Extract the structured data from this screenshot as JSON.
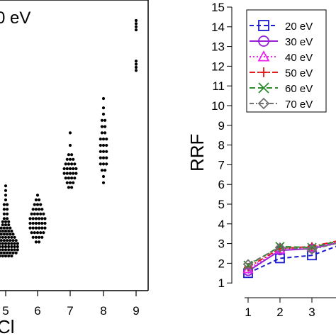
{
  "chart_data": [
    {
      "type": "scatter",
      "annotation": "0 eV",
      "xlabel": "Cl",
      "x_ticks": [
        "5",
        "6",
        "7",
        "8",
        "9"
      ],
      "groups": [
        {
          "x": "5",
          "values": [
            0.95,
            1.05,
            1.15,
            1.25,
            1.35,
            1.45,
            1.55,
            1.65,
            1.75,
            1.85,
            1.95,
            2.05,
            2.15,
            2.3,
            2.45,
            2.6,
            2.75,
            2.9,
            3.05,
            3.2
          ],
          "widths": [
            5,
            8,
            9,
            9,
            9,
            8,
            7,
            6,
            5,
            4,
            3,
            3,
            2,
            2,
            2,
            2,
            1,
            1,
            1,
            1
          ]
        },
        {
          "x": "6",
          "values": [
            1.4,
            1.55,
            1.7,
            1.85,
            2.0,
            2.15,
            2.3,
            2.45,
            2.6,
            2.75,
            2.9
          ],
          "widths": [
            2,
            4,
            5,
            6,
            6,
            6,
            5,
            4,
            3,
            2,
            1
          ]
        },
        {
          "x": "7",
          "values": [
            3.15,
            3.3,
            3.45,
            3.6,
            3.75,
            3.9,
            4.05,
            4.2,
            4.5,
            4.9
          ],
          "widths": [
            2,
            3,
            4,
            5,
            5,
            4,
            3,
            2,
            1,
            1
          ]
        },
        {
          "x": "8",
          "values": [
            3.3,
            3.5,
            3.7,
            3.9,
            4.1,
            4.3,
            4.5,
            4.7,
            4.9,
            5.1,
            5.3,
            5.5,
            5.7,
            6.0
          ],
          "widths": [
            1,
            1,
            2,
            3,
            3,
            3,
            3,
            3,
            2,
            2,
            2,
            1,
            1,
            1
          ]
        },
        {
          "x": "9",
          "values": [
            6.9,
            7.0,
            7.1,
            7.2,
            8.2,
            8.3,
            8.4,
            8.5
          ],
          "widths": [
            1,
            1,
            1,
            1,
            1,
            1,
            1,
            1
          ]
        }
      ]
    },
    {
      "type": "line",
      "ylabel": "RRF",
      "x_ticks": [
        "1",
        "2",
        "3"
      ],
      "y_ticks": [
        "1",
        "2",
        "3",
        "4",
        "5",
        "6",
        "7",
        "8",
        "9",
        "10",
        "11",
        "12",
        "13",
        "14",
        "15"
      ],
      "ylim": [
        0.5,
        15.5
      ],
      "legend_position": "top-left",
      "series": [
        {
          "name": "20 eV",
          "x": [
            1,
            2,
            3,
            4
          ],
          "values": [
            1.5,
            2.25,
            2.4,
            3.0
          ],
          "color": "#1c1ccc",
          "dash": "6,4",
          "marker": "square"
        },
        {
          "name": "30 eV",
          "x": [
            1,
            2,
            3,
            4
          ],
          "values": [
            1.6,
            2.65,
            2.75,
            3.1
          ],
          "color": "#9a1fd6",
          "dash": "",
          "marker": "circle"
        },
        {
          "name": "40 eV",
          "x": [
            1,
            2,
            3,
            4
          ],
          "values": [
            1.7,
            2.7,
            2.8,
            3.15
          ],
          "color": "#ee22ee",
          "dash": "2,3",
          "marker": "triangle"
        },
        {
          "name": "50 eV",
          "x": [
            1,
            2,
            3,
            4
          ],
          "values": [
            1.8,
            2.75,
            2.85,
            3.2
          ],
          "color": "#e01b1b",
          "dash": "8,3,2,3",
          "marker": "plus"
        },
        {
          "name": "60 eV",
          "x": [
            1,
            2,
            3,
            4
          ],
          "values": [
            1.9,
            2.85,
            2.8,
            3.2
          ],
          "color": "#2e8b2e",
          "dash": "8,4",
          "marker": "cross"
        },
        {
          "name": "70 eV",
          "x": [
            1,
            2,
            3,
            4
          ],
          "values": [
            1.95,
            2.8,
            2.7,
            3.1
          ],
          "color": "#707070",
          "dash": "6,3,2,3",
          "marker": "diamond"
        }
      ]
    }
  ]
}
